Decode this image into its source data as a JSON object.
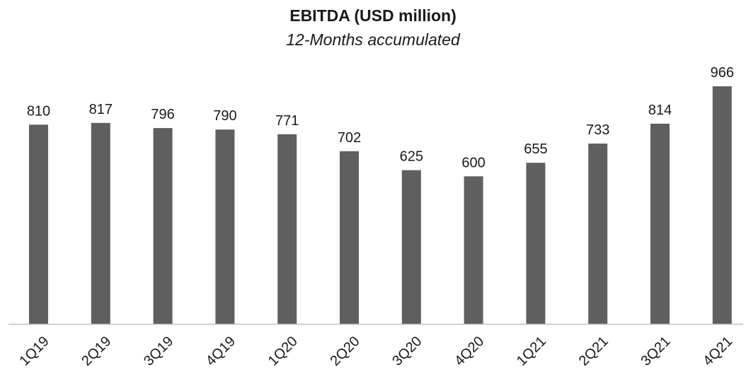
{
  "chart_data": {
    "type": "bar",
    "title": "EBITDA (USD million)",
    "subtitle": "12-Months accumulated",
    "xlabel": "",
    "ylabel": "",
    "categories": [
      "1Q19",
      "2Q19",
      "3Q19",
      "4Q19",
      "1Q20",
      "2Q20",
      "3Q20",
      "4Q20",
      "1Q21",
      "2Q21",
      "3Q21",
      "4Q21"
    ],
    "values": [
      810,
      817,
      796,
      790,
      771,
      702,
      625,
      600,
      655,
      733,
      814,
      966
    ],
    "ylim": [
      0,
      966
    ],
    "grid": false,
    "data_labels": true,
    "bar_color": "#5f5f5f",
    "axis_color": "#bfbfbf"
  }
}
